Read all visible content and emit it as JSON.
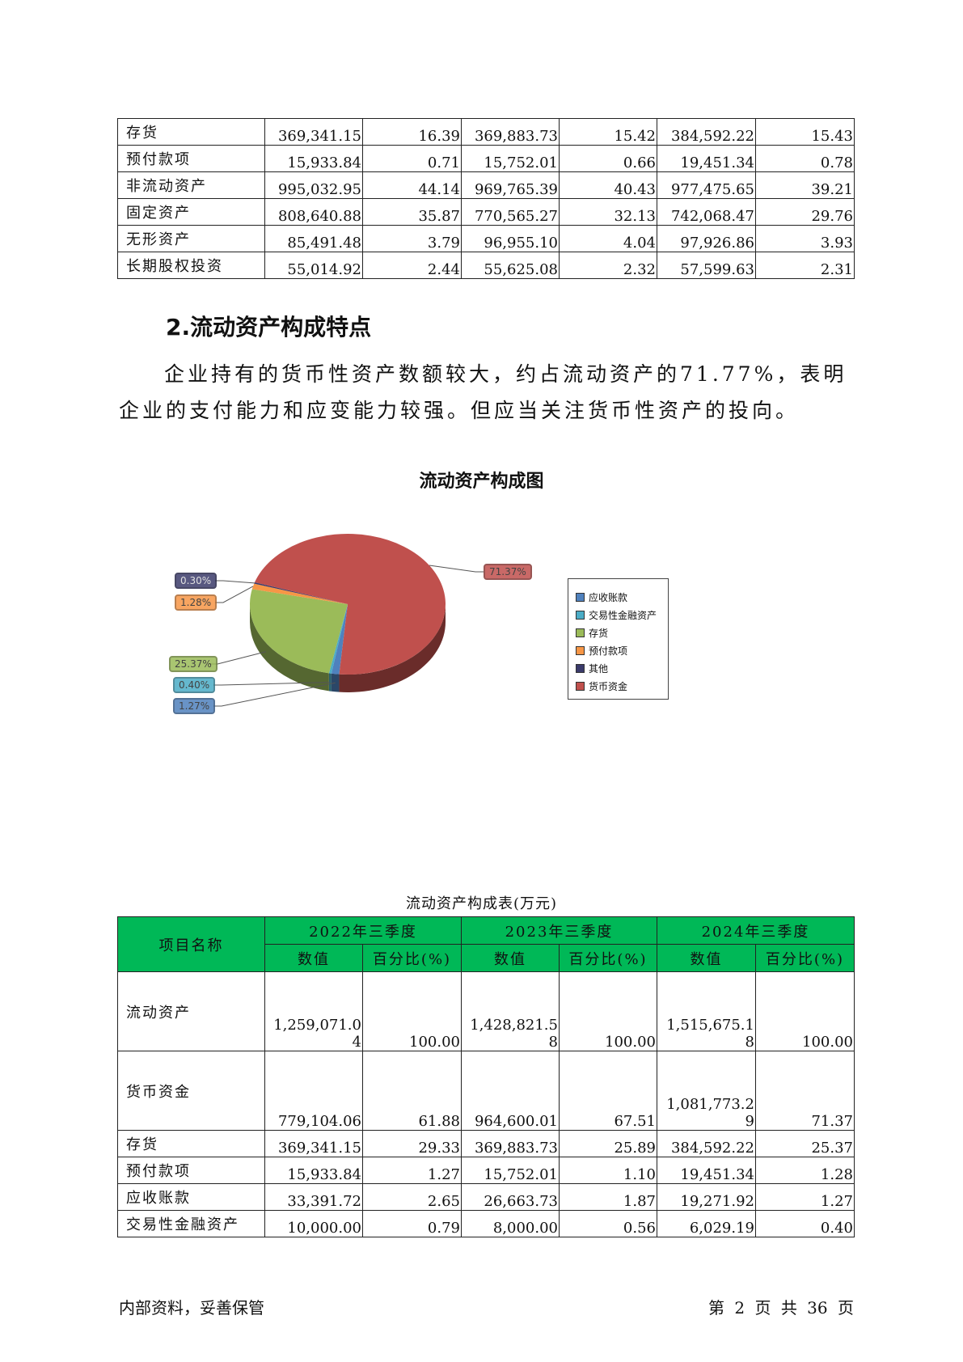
{
  "top_table": {
    "rows": [
      [
        "存货",
        "369,341.15",
        "16.39",
        "369,883.73",
        "15.42",
        "384,592.22",
        "15.43"
      ],
      [
        "预付款项",
        "15,933.84",
        "0.71",
        "15,752.01",
        "0.66",
        "19,451.34",
        "0.78"
      ],
      [
        "非流动资产",
        "995,032.95",
        "44.14",
        "969,765.39",
        "40.43",
        "977,475.65",
        "39.21"
      ],
      [
        "固定资产",
        "808,640.88",
        "35.87",
        "770,565.27",
        "32.13",
        "742,068.47",
        "29.76"
      ],
      [
        "无形资产",
        "85,491.48",
        "3.79",
        "96,955.10",
        "4.04",
        "97,926.86",
        "3.93"
      ],
      [
        "长期股权投资",
        "55,014.92",
        "2.44",
        "55,625.08",
        "2.32",
        "57,599.63",
        "2.31"
      ]
    ]
  },
  "heading": "2.流动资产构成特点",
  "paragraph": "企业持有的货币性资产数额较大，约占流动资产的71.77%，表明企业的支付能力和应变能力较强。但应当关注货币性资产的投向。",
  "chart_data": {
    "type": "pie",
    "title": "流动资产构成图",
    "legend_position": "right",
    "slices": [
      {
        "name": "应收账款",
        "value": 1.27,
        "label": "1.27%",
        "color": "#4f81bd"
      },
      {
        "name": "交易性金融资产",
        "value": 0.4,
        "label": "0.40%",
        "color": "#4bacc6"
      },
      {
        "name": "存货",
        "value": 25.37,
        "label": "25.37%",
        "color": "#9bbb59"
      },
      {
        "name": "预付款项",
        "value": 1.28,
        "label": "1.28%",
        "color": "#f79646"
      },
      {
        "name": "其他",
        "value": 0.3,
        "label": "0.30%",
        "color": "#3b3b6b"
      },
      {
        "name": "货币资金",
        "value": 71.37,
        "label": "71.37%",
        "color": "#c0504d"
      }
    ]
  },
  "bottom_table": {
    "caption": "流动资产构成表(万元)",
    "header_item": "项目名称",
    "periods": [
      "2022年三季度",
      "2023年三季度",
      "2024年三季度"
    ],
    "sub_value": "数值",
    "sub_pct": "百分比(%)",
    "rows": [
      [
        "流动资产",
        "1,259,071.04",
        "100.00",
        "1,428,821.58",
        "100.00",
        "1,515,675.18",
        "100.00"
      ],
      [
        "货币资金",
        "779,104.06",
        "61.88",
        "964,600.01",
        "67.51",
        "1,081,773.29",
        "71.37"
      ],
      [
        "存货",
        "369,341.15",
        "29.33",
        "369,883.73",
        "25.89",
        "384,592.22",
        "25.37"
      ],
      [
        "预付款项",
        "15,933.84",
        "1.27",
        "15,752.01",
        "1.10",
        "19,451.34",
        "1.28"
      ],
      [
        "应收账款",
        "33,391.72",
        "2.65",
        "26,663.73",
        "1.87",
        "19,271.92",
        "1.27"
      ],
      [
        "交易性金融资产",
        "10,000.00",
        "0.79",
        "8,000.00",
        "0.56",
        "6,029.19",
        "0.40"
      ]
    ]
  },
  "footer": {
    "left": "内部资料，妥善保管",
    "right": "第 2 页  共 36 页"
  }
}
